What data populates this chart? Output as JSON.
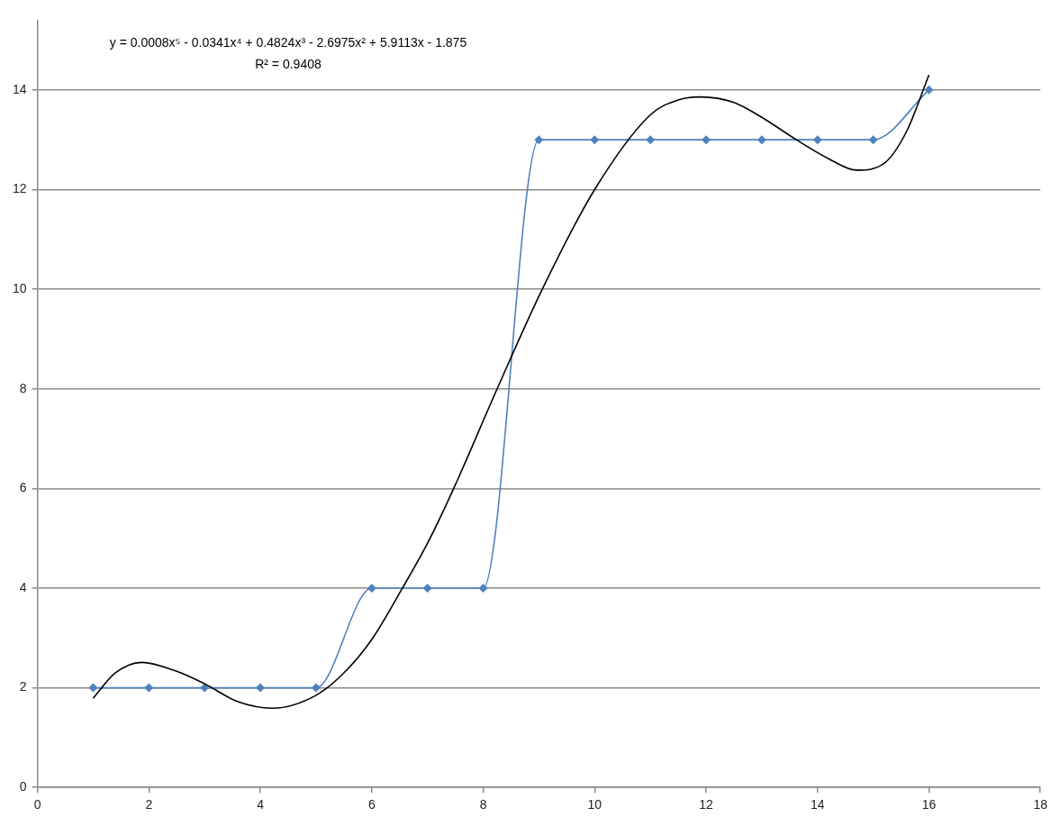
{
  "chart_data": {
    "type": "line",
    "x": [
      1,
      2,
      3,
      4,
      5,
      6,
      7,
      8,
      9,
      10,
      11,
      12,
      13,
      14,
      15,
      16
    ],
    "series": [
      {
        "color": "#4f81bd",
        "values": [
          2,
          2,
          2,
          2,
          2,
          4,
          4,
          4,
          13,
          13,
          13,
          13,
          13,
          13,
          13,
          14
        ]
      },
      {
        "type": "line",
        "color": "#000000",
        "marker": "none",
        "x": [
          1,
          1.4,
          1.87,
          2.5,
          3,
          3.6,
          4.22,
          5,
          5.5,
          6,
          6.55,
          7,
          7.47,
          8.25,
          9.06,
          10,
          11,
          11.5,
          11.9,
          12.5,
          13,
          13.62,
          14.2,
          14.7,
          15.2,
          15.6,
          16
        ],
        "values": [
          1.79,
          2.3,
          2.51,
          2.33,
          2.08,
          1.72,
          1.59,
          1.85,
          2.3,
          2.97,
          4.0,
          4.9,
          6.0,
          8.0,
          10.0,
          12.0,
          13.5,
          13.8,
          13.86,
          13.75,
          13.45,
          13.0,
          12.62,
          12.39,
          12.53,
          13.17,
          14.3
        ]
      }
    ],
    "annotations": [
      "y = 0.0008x⁵ - 0.0341x⁴ + 0.4824x³ - 2.6975x² + 5.9113x - 1.875",
      "R² = 0.9408"
    ],
    "xlim": [
      0,
      18
    ],
    "xticks": [
      0,
      2,
      4,
      6,
      8,
      10,
      12,
      14,
      16,
      18
    ],
    "ylim": [
      0,
      15.4
    ],
    "yticks": [
      0,
      2,
      4,
      6,
      8,
      10,
      12,
      14
    ],
    "grid": "y",
    "marker": "diamond"
  }
}
